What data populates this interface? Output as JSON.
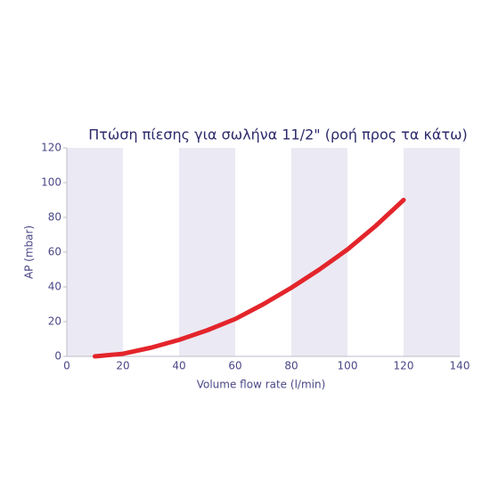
{
  "chart_data": {
    "type": "line",
    "title": "Πτώση πίεσης για σωλήνα 11/2\" (ροή προς τα κάτω)",
    "x_label": "Volume flow rate (l/min)",
    "y_label": "AP (mbar)",
    "x": [
      10,
      20,
      30,
      40,
      50,
      60,
      70,
      80,
      90,
      100,
      110,
      120
    ],
    "values": [
      0,
      1.5,
      5,
      9.5,
      15,
      21.5,
      30,
      39.5,
      50,
      61.5,
      75,
      90
    ],
    "color": "#e3252b",
    "band_color": "#ebe9f3",
    "xlim": [
      0,
      140
    ],
    "xticks": [
      0,
      20,
      40,
      60,
      80,
      100,
      120,
      140
    ],
    "ylim": [
      0,
      120
    ],
    "yticks": [
      0,
      20,
      40,
      60,
      80,
      100,
      120
    ]
  }
}
